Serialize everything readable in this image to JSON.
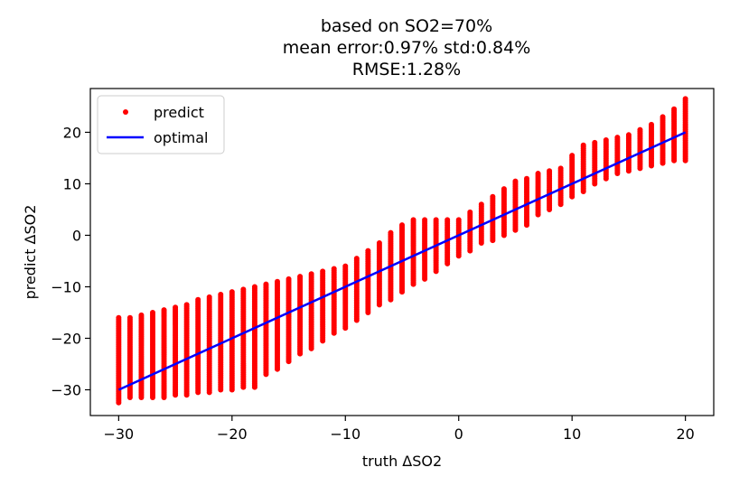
{
  "chart_data": {
    "type": "scatter",
    "title": [
      "based on SO2=70%",
      "mean error:0.97% std:0.84%",
      "RMSE:1.28%"
    ],
    "xlabel": "truth ΔSO2",
    "ylabel": "predict ΔSO2",
    "xlim": [
      -32.5,
      22.5
    ],
    "ylim": [
      -35,
      28.5
    ],
    "x_ticks": [
      -30,
      -20,
      -10,
      0,
      10,
      20
    ],
    "x_tick_labels": [
      "−30",
      "−20",
      "−10",
      "0",
      "10",
      "20"
    ],
    "y_ticks": [
      -30,
      -20,
      -10,
      0,
      10,
      20
    ],
    "y_tick_labels": [
      "−30",
      "−20",
      "−10",
      "0",
      "10",
      "20"
    ],
    "grid": false,
    "legend": {
      "placement": "top-left",
      "entries": [
        "predict",
        "optimal"
      ]
    },
    "series": [
      {
        "name": "predict",
        "kind": "points",
        "color": "#ff0000",
        "x_values": [
          -30,
          -29,
          -28,
          -27,
          -26,
          -25,
          -24,
          -23,
          -22,
          -21,
          -20,
          -19,
          -18,
          -17,
          -16,
          -15,
          -14,
          -13,
          -12,
          -11,
          -10,
          -9,
          -8,
          -7,
          -6,
          -5,
          -4,
          -3,
          -2,
          -1,
          0,
          1,
          2,
          3,
          4,
          5,
          6,
          7,
          8,
          9,
          10,
          11,
          12,
          13,
          14,
          15,
          16,
          17,
          18,
          19,
          20
        ],
        "y_min": [
          -32.5,
          -31.5,
          -31.5,
          -31.5,
          -31.5,
          -31.0,
          -31.0,
          -30.5,
          -30.5,
          -30.0,
          -30.0,
          -29.5,
          -29.5,
          -27.0,
          -26.0,
          -24.5,
          -23.0,
          -22.0,
          -20.5,
          -19.0,
          -18.0,
          -16.5,
          -15.0,
          -13.5,
          -12.5,
          -11.0,
          -9.5,
          -8.5,
          -7.0,
          -5.5,
          -4.0,
          -3.0,
          -1.5,
          -1.0,
          0.0,
          1.0,
          2.0,
          4.0,
          5.0,
          6.0,
          7.5,
          8.5,
          10.0,
          11.0,
          12.0,
          12.5,
          13.0,
          13.5,
          14.0,
          14.5,
          14.5
        ],
        "y_max": [
          -16.0,
          -16.0,
          -15.5,
          -15.0,
          -14.5,
          -14.0,
          -13.5,
          -12.5,
          -12.0,
          -11.5,
          -11.0,
          -10.5,
          -10.0,
          -9.5,
          -9.0,
          -8.5,
          -8.0,
          -7.5,
          -7.0,
          -6.5,
          -6.0,
          -4.5,
          -3.0,
          -1.5,
          0.5,
          2.0,
          3.0,
          3.0,
          3.0,
          3.0,
          3.0,
          4.5,
          6.0,
          7.5,
          9.0,
          10.5,
          11.0,
          12.0,
          12.5,
          13.0,
          15.5,
          17.5,
          18.0,
          18.5,
          19.0,
          19.5,
          20.5,
          21.5,
          23.0,
          24.5,
          26.5
        ]
      },
      {
        "name": "optimal",
        "kind": "line",
        "color": "#0000ff",
        "x": [
          -30,
          20
        ],
        "y": [
          -30,
          20
        ]
      }
    ]
  }
}
